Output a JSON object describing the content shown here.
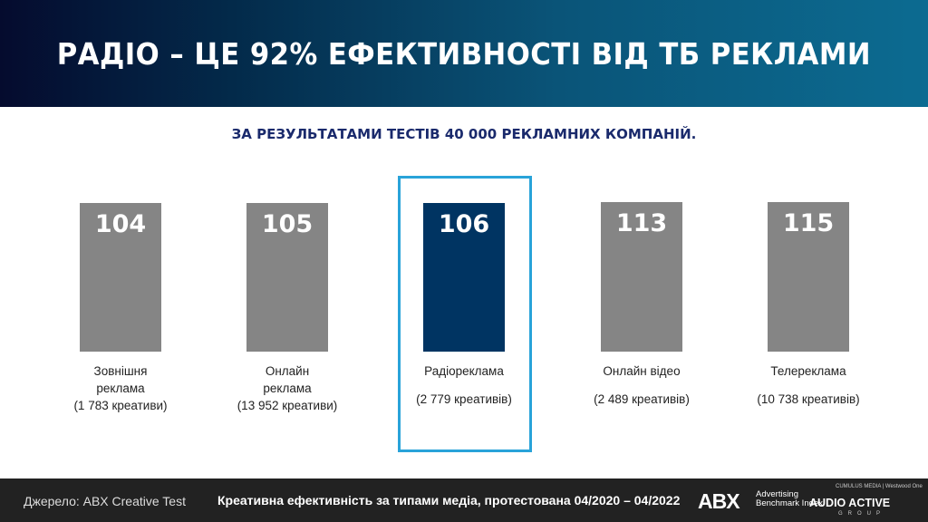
{
  "header": {
    "title": "РАДІО – ЦЕ 92% ЕФЕКТИВНОСТІ ВІД ТБ РЕКЛАМИ"
  },
  "subtitle": "ЗА РЕЗУЛЬТАТАМИ ТЕСТІВ 40 000  РЕКЛАМНИХ КОМПАНІЙ.",
  "chart_data": {
    "type": "bar",
    "categories": [
      "Зовнішня реклама",
      "Онлайн реклама",
      "Радіореклама",
      "Онлайн відео",
      "Телереклама"
    ],
    "counts": [
      "(1 783 креативи)",
      "(13 952 креативи)",
      "(2 779 креативів)",
      "(2 489 креативів)",
      "(10 738 креативів)"
    ],
    "values": [
      104,
      105,
      106,
      113,
      115
    ],
    "highlight": "Радіореклама",
    "colors": {
      "default": "#858585",
      "highlight": "#003462",
      "highlight_border": "#29a3d9"
    }
  },
  "footer": {
    "source": "Джерело: ABX Creative Test",
    "description": "Креативна ефективність за типами медіа, протестована 04/2020 – 04/2022",
    "abx_logo": "ABX",
    "abx_sub1": "Advertising",
    "abx_sub2": "Benchmark Index",
    "aag_top": "CUMULUS MEDIA | Westwood One",
    "aag_logo": "AUDIO ACTIVE",
    "aag_sub": "GROUP"
  }
}
